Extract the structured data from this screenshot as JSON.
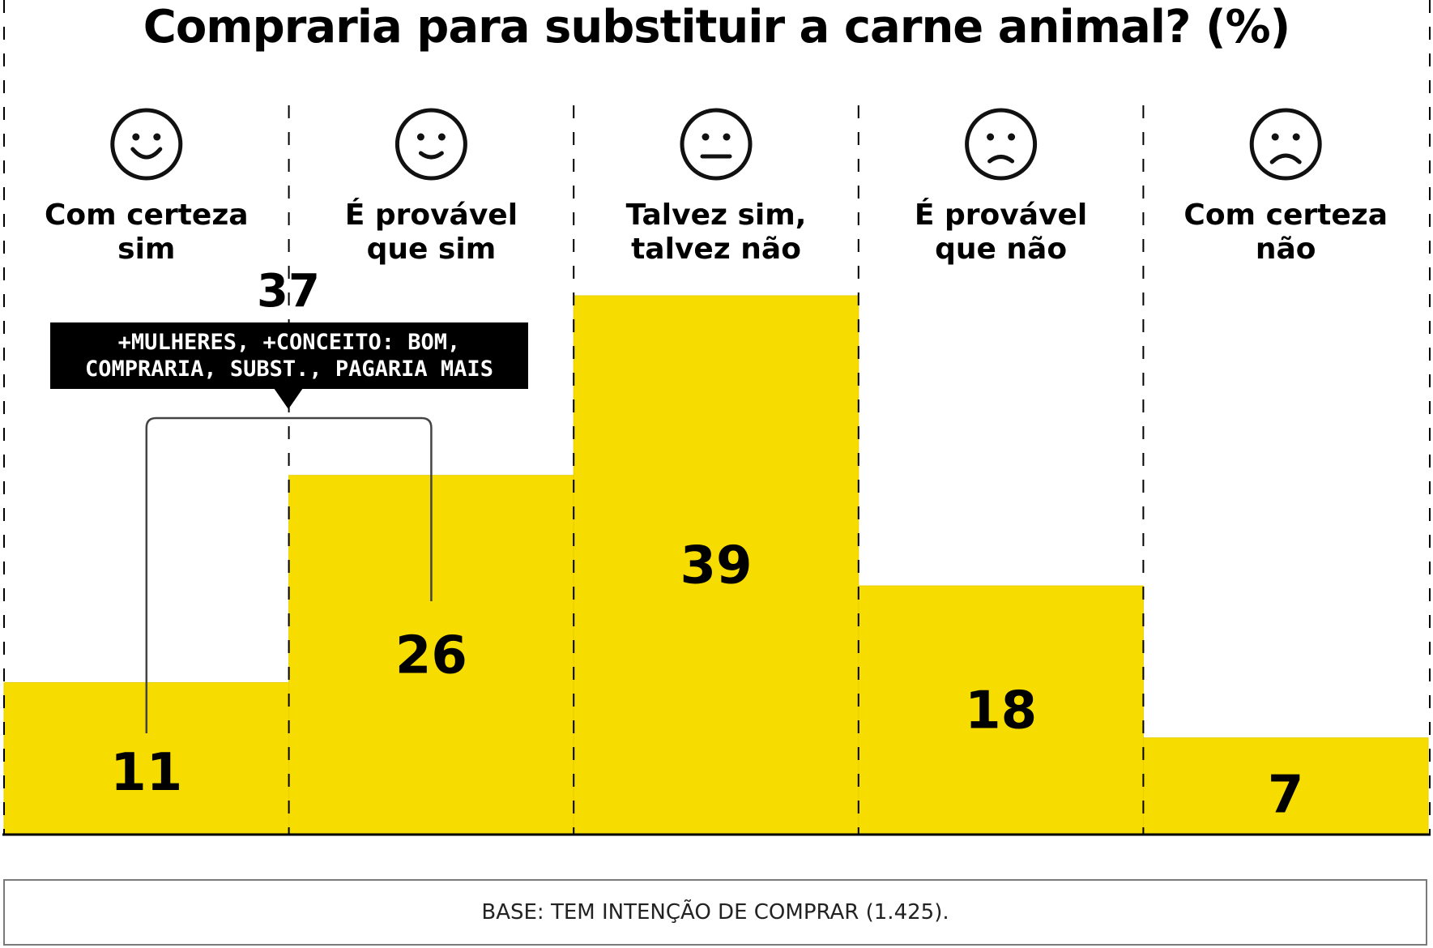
{
  "chart_data": {
    "type": "bar",
    "title": "Compraria para substituir a carne animal? (%)",
    "categories": [
      {
        "line1": "Com certeza",
        "line2": "sim",
        "face": "big-smile-face-icon",
        "mouth": "big-smile"
      },
      {
        "line1": "É provável",
        "line2": "que sim",
        "face": "smile-face-icon",
        "mouth": "smile"
      },
      {
        "line1": "Talvez sim,",
        "line2": "talvez não",
        "face": "neutral-face-icon",
        "mouth": "neutral"
      },
      {
        "line1": "É provável",
        "line2": "que não",
        "face": "frown-face-icon",
        "mouth": "frown"
      },
      {
        "line1": "Com certeza",
        "line2": "não",
        "face": "big-frown-face-icon",
        "mouth": "big-frown"
      }
    ],
    "values": [
      11,
      26,
      39,
      18,
      7
    ],
    "value_labels": [
      "11",
      "26",
      "39",
      "18",
      "7"
    ],
    "ylim": [
      0,
      39
    ],
    "bar_color": "#f7dc00",
    "grid": "dashed vertical separators",
    "annotation": {
      "total": "37",
      "line1": "+MULHERES, +CONCEITO: BOM,",
      "line2": "COMPRARIA, SUBST., PAGARIA MAIS",
      "spans_categories": [
        0,
        1
      ]
    }
  },
  "footnote": "BASE: TEM INTENÇÃO DE COMPRAR (1.425)."
}
